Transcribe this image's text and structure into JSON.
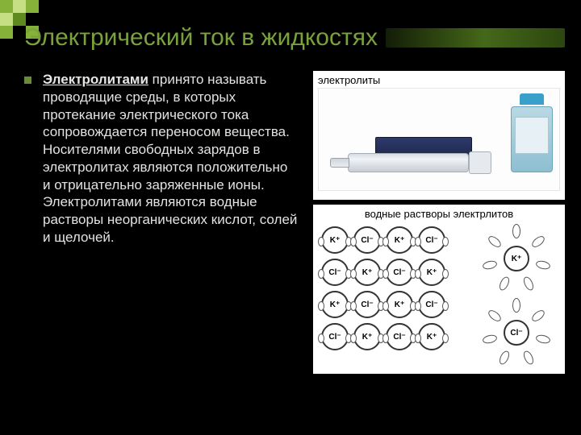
{
  "decor": {
    "colors": [
      "#86b23a",
      "#c7df84",
      "#5f8a1f",
      "#3a5a10",
      "#000000"
    ],
    "grid": [
      [
        0,
        1,
        0,
        4,
        4
      ],
      [
        1,
        2,
        4,
        4,
        4
      ],
      [
        0,
        4,
        0,
        4,
        4
      ],
      [
        4,
        4,
        4,
        4,
        4
      ]
    ]
  },
  "title": "Электрический ток в жидкостях",
  "term": "Электролитами",
  "body": " принято называть проводящие среды, в которых протекание электрического тока сопровождается переносом вещества. Носителями свободных зарядов в электролитах являются положительно и отрицательно заряженные ионы. Электролитами являются водные растворы неорганических кислот, солей и щелочей.",
  "panels": {
    "products_label": "электролиты",
    "diagram_label": "водные растворы электрлитов",
    "lattice_ions": [
      "K⁺",
      "Cl⁻",
      "K⁺",
      "Cl⁻",
      "Cl⁻",
      "K⁺",
      "Cl⁻",
      "K⁺",
      "K⁺",
      "Cl⁻",
      "K⁺",
      "Cl⁻",
      "Cl⁻",
      "K⁺",
      "Cl⁻",
      "K⁺"
    ],
    "cluster_centers": [
      "K⁺",
      "Cl⁻"
    ]
  }
}
